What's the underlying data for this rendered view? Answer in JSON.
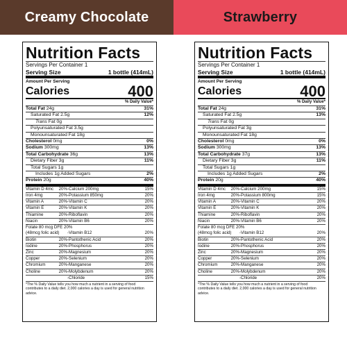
{
  "panels": [
    {
      "flavor": "Creamy Chocolate",
      "title": "Nutrition Facts",
      "servings": "Servings Per Container 1",
      "serving_size_label": "Serving Size",
      "serving_size_value": "1 bottle (414mL)",
      "amount_per": "Amount Per Serving",
      "calories_label": "Calories",
      "calories_value": "400",
      "dv_header": "% Daily Value*",
      "nutrients": [
        {
          "name": "Total Fat",
          "amt": "24g",
          "dv": "31%"
        },
        {
          "name": "Saturated Fat",
          "amt": "2.5g",
          "dv": "12%"
        },
        {
          "name": "Trans",
          "amt": "Fat 0g",
          "dv": ""
        },
        {
          "name": "Polyunsaturated Fat",
          "amt": "3.5g",
          "dv": ""
        },
        {
          "name": "Monounsaturated Fat",
          "amt": "18g",
          "dv": ""
        },
        {
          "name": "Cholesterol",
          "amt": "0mg",
          "dv": "0%"
        },
        {
          "name": "Sodium",
          "amt": "300mg",
          "dv": "13%"
        },
        {
          "name": "Total Carbohydrate",
          "amt": "36g",
          "dv": "13%"
        },
        {
          "name": "Dietary Fiber",
          "amt": "3g",
          "dv": "11%"
        },
        {
          "name": "Total Sugars",
          "amt": "1g",
          "dv": ""
        },
        {
          "name": "Includes 1g Added Sugars",
          "amt": "",
          "dv": "2%"
        },
        {
          "name": "Protein",
          "amt": "20g",
          "dv": "40%"
        }
      ],
      "vitamins": [
        [
          "Vitamin D 4mcg",
          "20%",
          "-Calcium 200mg",
          "15%"
        ],
        [
          "Iron 4mg",
          "20%",
          "-Potassium 850mg",
          "20%"
        ],
        [
          "Vitamin A",
          "20%",
          "-Vitamin C",
          "20%"
        ],
        [
          "Vitamin E",
          "20%",
          "-Vitamin K",
          "20%"
        ],
        [
          "Thiamine",
          "20%",
          "-Riboflavin",
          "20%"
        ],
        [
          "Niacin",
          "20%",
          "-Vitamin B6",
          "20%"
        ]
      ],
      "folate_line1": "Folate 80 mcg DFE 20%",
      "folate_line2": "(48mcg folic acid)",
      "folate_b12": "-Vitamin B12",
      "folate_b12_dv": "20%",
      "minerals": [
        [
          "Biotin",
          "20%",
          "-Pantothenic Acid",
          "20%"
        ],
        [
          "Iodine",
          "20%",
          "-Phosphorus",
          "20%"
        ],
        [
          "Zinc",
          "20%",
          "-Magnesium",
          "20%"
        ],
        [
          "Copper",
          "20%",
          "-Selenium",
          "20%"
        ],
        [
          "Chromium",
          "20%",
          "-Manganese",
          "20%"
        ],
        [
          "Choline",
          "20%",
          "-Molybdenum",
          "20%"
        ],
        [
          "",
          "",
          "-Chloride",
          "15%"
        ]
      ],
      "footnote": "*The % Daily Value tells you how much a nutrient in a serving of food contributes to a daily diet. 2,000 calories a day is used for general nutrition advice."
    },
    {
      "flavor": "Strawberry",
      "title": "Nutrition Facts",
      "servings": "Servings Per Container 1",
      "serving_size_label": "Serving Size",
      "serving_size_value": "1 bottle (414mL)",
      "amount_per": "Amount Per Serving",
      "calories_label": "Calories",
      "calories_value": "400",
      "dv_header": "% Daily Value*",
      "nutrients": [
        {
          "name": "Total Fat",
          "amt": "24g",
          "dv": "31%"
        },
        {
          "name": "Saturated Fat",
          "amt": "2.5g",
          "dv": "13%"
        },
        {
          "name": "Trans",
          "amt": "Fat 0g",
          "dv": ""
        },
        {
          "name": "Polyunsaturated Fat",
          "amt": "3g",
          "dv": ""
        },
        {
          "name": "Monounsaturated Fat",
          "amt": "18g",
          "dv": ""
        },
        {
          "name": "Cholesterol",
          "amt": "0mg",
          "dv": "0%"
        },
        {
          "name": "Sodium",
          "amt": "300mg",
          "dv": "13%"
        },
        {
          "name": "Total Carbohydrate",
          "amt": "37g",
          "dv": "13%"
        },
        {
          "name": "Dietary Fiber",
          "amt": "3g",
          "dv": "11%"
        },
        {
          "name": "Total Sugars",
          "amt": "1g",
          "dv": ""
        },
        {
          "name": "Includes 1g Added Sugars",
          "amt": "",
          "dv": "2%"
        },
        {
          "name": "Protein",
          "amt": "20g",
          "dv": "40%"
        }
      ],
      "vitamins": [
        [
          "Vitamin D 4mcg",
          "20%",
          "-Calcium 200mg",
          "15%"
        ],
        [
          "Iron 4mg",
          "20%",
          "-Potassium 800mg",
          "15%"
        ],
        [
          "Vitamin A",
          "20%",
          "-Vitamin C",
          "20%"
        ],
        [
          "Vitamin E",
          "20%",
          "-Vitamin K",
          "20%"
        ],
        [
          "Thiamine",
          "20%",
          "-Riboflavin",
          "20%"
        ],
        [
          "Niacin",
          "20%",
          "-Vitamin B6",
          "20%"
        ]
      ],
      "folate_line1": "Folate 80 mcg DFE 20%",
      "folate_line2": "(48mcg folic acid)",
      "folate_b12": "-Vitamin B12",
      "folate_b12_dv": "20%",
      "minerals": [
        [
          "Biotin",
          "20%",
          "-Pantothenic Acid",
          "20%"
        ],
        [
          "Iodine",
          "20%",
          "-Phosphorus",
          "20%"
        ],
        [
          "Zinc",
          "20%",
          "-Magnesium",
          "20%"
        ],
        [
          "Copper",
          "20%",
          "-Selenium",
          "20%"
        ],
        [
          "Chromium",
          "20%",
          "-Manganese",
          "20%"
        ],
        [
          "Choline",
          "20%",
          "-Molybdenum",
          "20%"
        ],
        [
          "",
          "",
          "-Chloride",
          "20%"
        ]
      ],
      "footnote": "*The % Daily Value tells you how much a nutrient in a serving of food contributes to a daily diet. 2,000 calories a day is used for general nutrition advice."
    }
  ]
}
